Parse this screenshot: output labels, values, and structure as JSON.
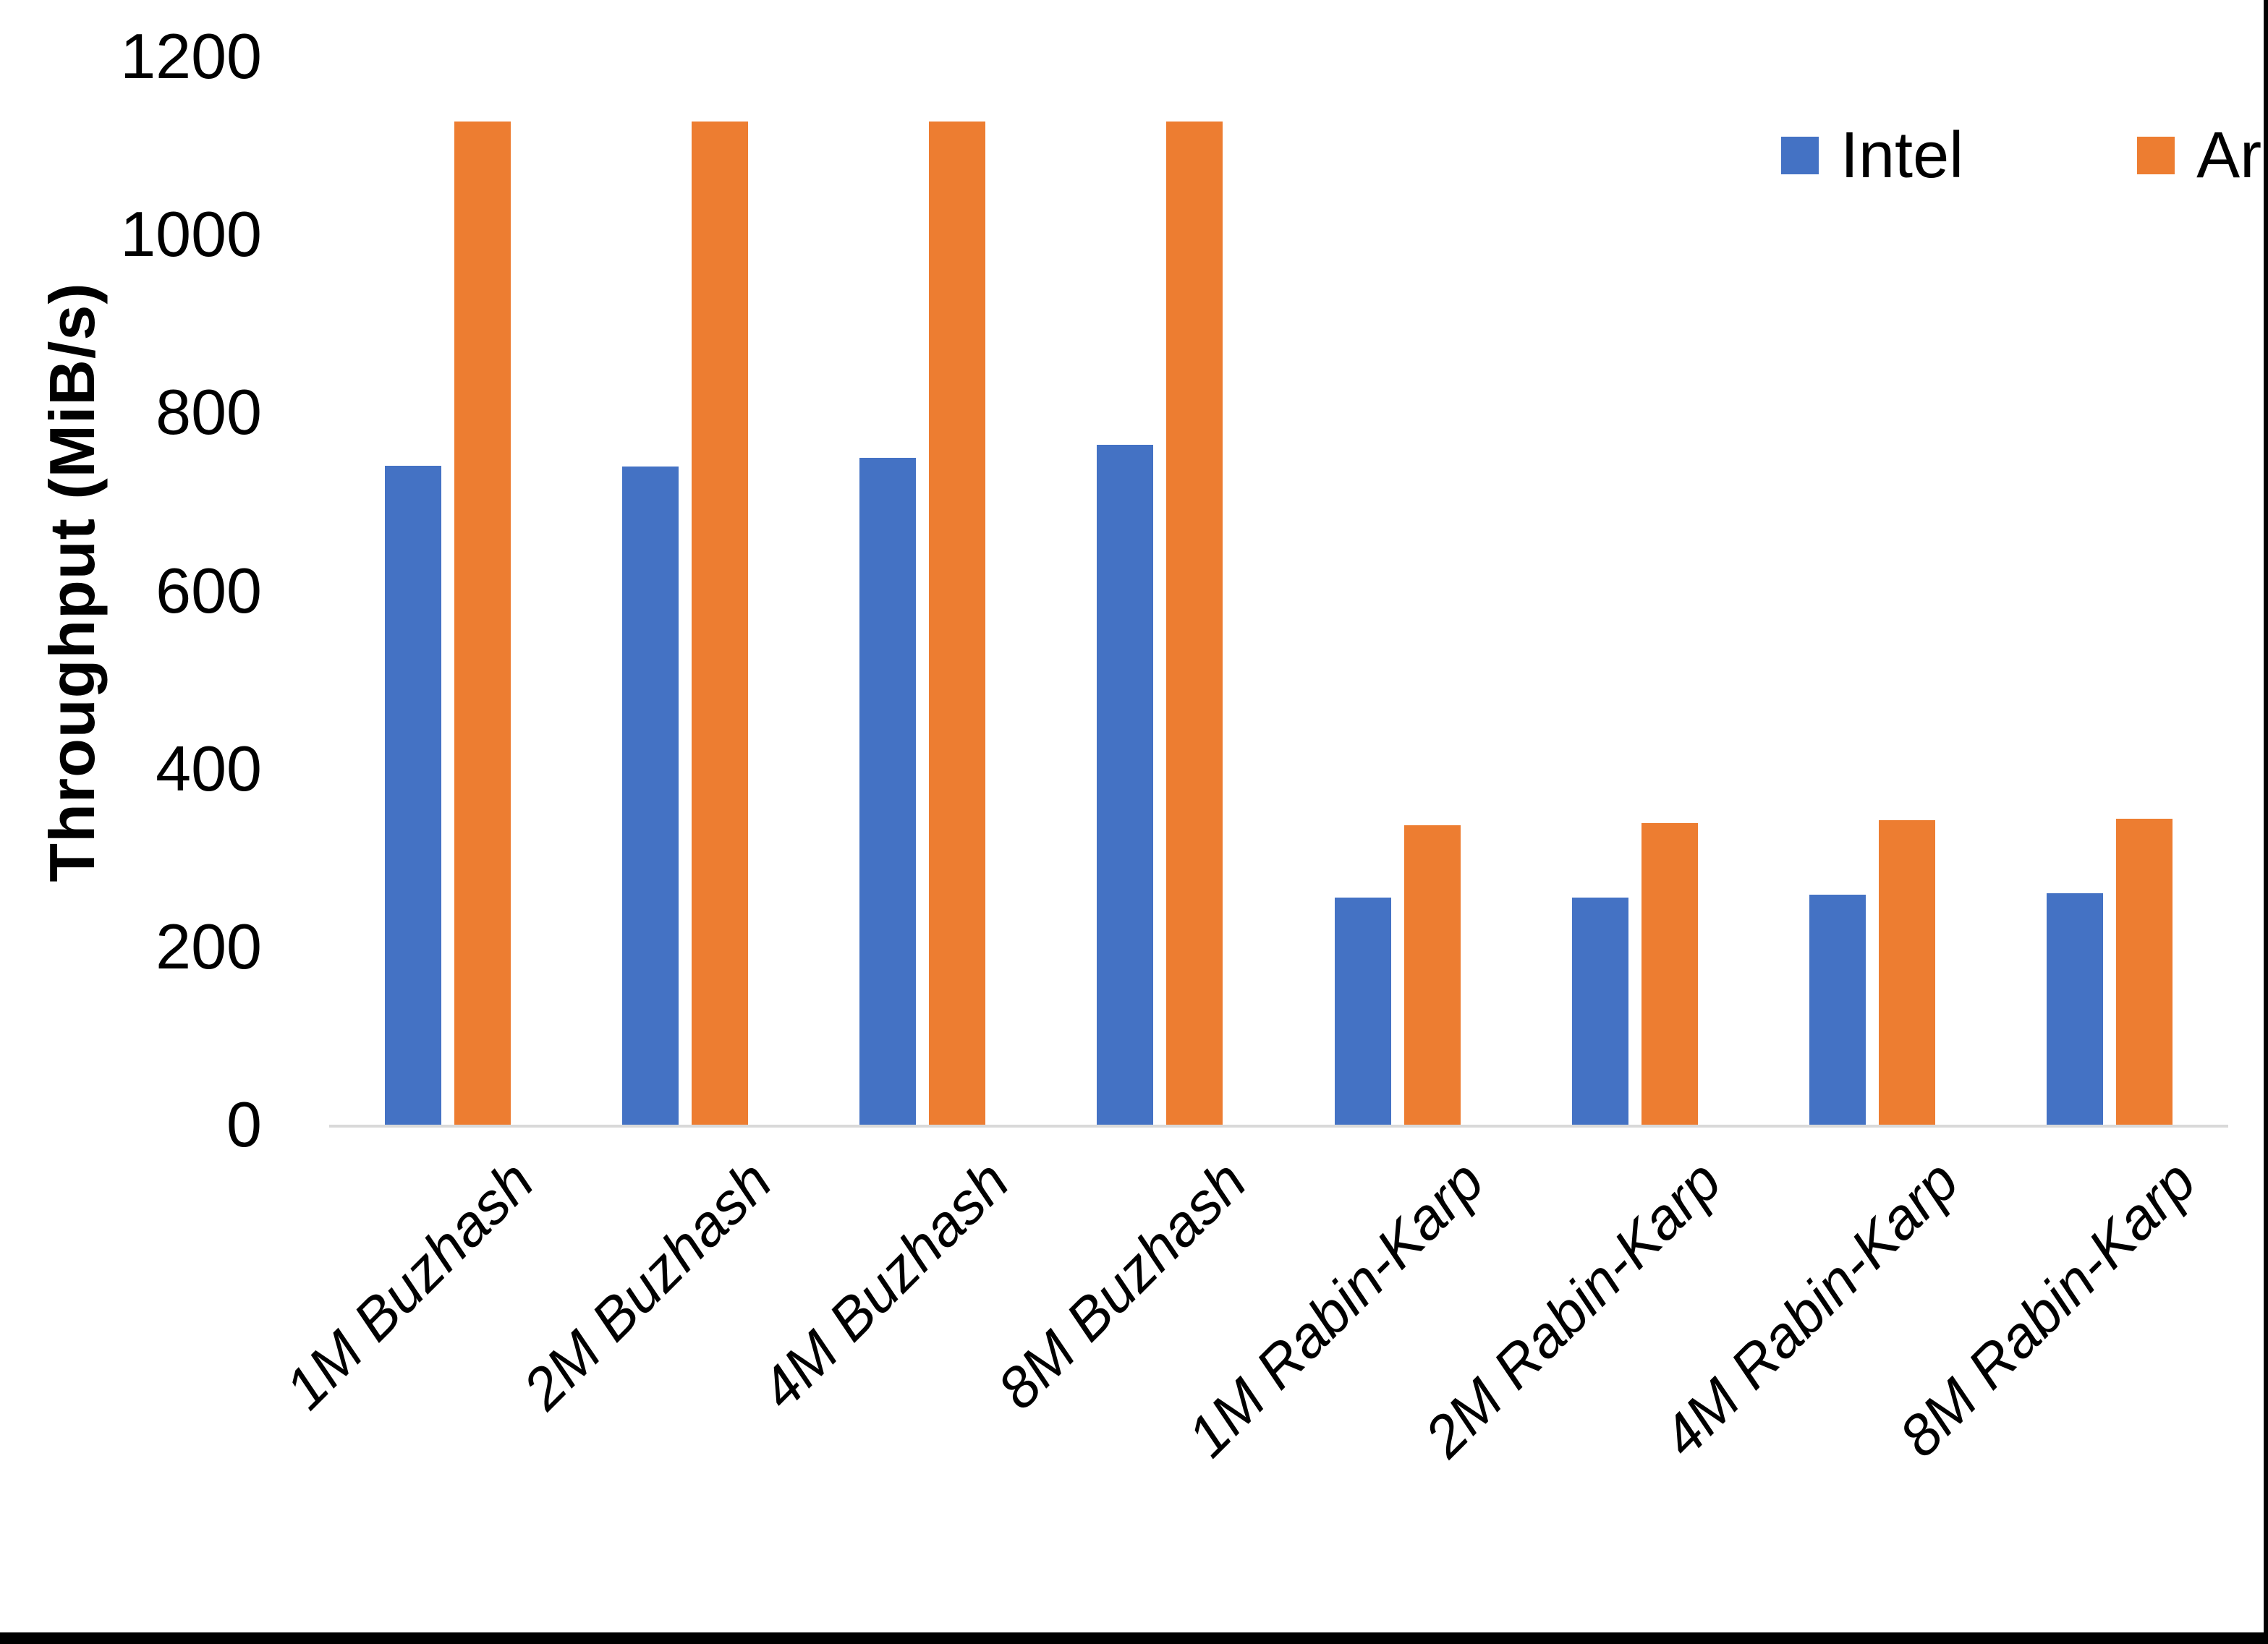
{
  "chart_data": {
    "type": "bar",
    "title": "",
    "ylabel": "Throughput (MiB/s)",
    "ylim": [
      0,
      1200
    ],
    "ytick_step": 200,
    "yticks": [
      0,
      200,
      400,
      600,
      800,
      1000,
      1200
    ],
    "grid": false,
    "legend_position": "top-right",
    "categories": [
      "1M Buzhash",
      "2M Buzhash",
      "4M Buzhash",
      "8M Buzhash",
      "1M Rabin-Karp",
      "2M Rabin-Karp",
      "4M Rabin-Karp",
      "8M Rabin-Karp"
    ],
    "series": [
      {
        "name": "Intel",
        "color": "#4472C4",
        "values": [
          740,
          739,
          749,
          764,
          255,
          255,
          258,
          260
        ]
      },
      {
        "name": "Arm",
        "color": "#ED7D31",
        "values": [
          1127,
          1127,
          1127,
          1127,
          336,
          339,
          342,
          344
        ]
      }
    ],
    "axis_line_color": "#D9D9D9",
    "frame_color": "#000000"
  }
}
